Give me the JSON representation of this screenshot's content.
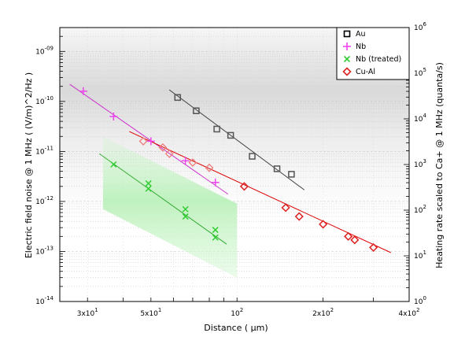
{
  "chart_data": {
    "type": "scatter",
    "xlabel": "Distance (  μm)",
    "ylabel_left": "Electric field noise @ 1 MHz ( (V/m)^2/Hz )",
    "ylabel_right": "Heating rate scaled to Ca+ @ 1 MHz (quanta/s)",
    "xscale": "log",
    "yscale": "log",
    "xlim": [
      24,
      400
    ],
    "ylim_left": [
      1e-14,
      3e-09
    ],
    "ylim_right": [
      1,
      1000000
    ],
    "x_ticks": [
      {
        "value": 30,
        "label": "3x10",
        "exp": "1"
      },
      {
        "value": 50,
        "label": "5x10",
        "exp": "1"
      },
      {
        "value": 100,
        "label": "10",
        "exp": "2"
      },
      {
        "value": 200,
        "label": "2x10",
        "exp": "2"
      },
      {
        "value": 400,
        "label": "4x10",
        "exp": "2"
      }
    ],
    "y_ticks_left": [
      {
        "value": 1e-14,
        "label": "10",
        "exp": "-14"
      },
      {
        "value": 1e-13,
        "label": "10",
        "exp": "-13"
      },
      {
        "value": 1e-12,
        "label": "10",
        "exp": "-12"
      },
      {
        "value": 1e-11,
        "label": "10",
        "exp": "-11"
      },
      {
        "value": 1e-10,
        "label": "10",
        "exp": "-10"
      },
      {
        "value": 1e-09,
        "label": "10",
        "exp": "-09"
      }
    ],
    "y_ticks_right": [
      {
        "value": 1,
        "label": "10",
        "exp": "0"
      },
      {
        "value": 10,
        "label": "10",
        "exp": "1"
      },
      {
        "value": 100,
        "label": "10",
        "exp": "2"
      },
      {
        "value": 1000,
        "label": "10",
        "exp": "3"
      },
      {
        "value": 10000,
        "label": "10",
        "exp": "4"
      },
      {
        "value": 100000,
        "label": "10",
        "exp": "5"
      },
      {
        "value": 1000000,
        "label": "10",
        "exp": "6"
      }
    ],
    "grid": true,
    "legend_position": "top-right",
    "series": [
      {
        "name": "Au",
        "marker": "square",
        "color": "#555555",
        "fit_color": "#444444",
        "points": [
          [
            62,
            1.2e-10
          ],
          [
            72,
            6.5e-11
          ],
          [
            85,
            2.8e-11
          ],
          [
            95,
            2.1e-11
          ],
          [
            113,
            8e-12
          ],
          [
            138,
            4.5e-12
          ],
          [
            155,
            3.5e-12
          ]
        ],
        "fit": [
          [
            58,
            1.7e-10
          ],
          [
            172,
            1.7e-12
          ]
        ]
      },
      {
        "name": "Nb",
        "marker": "plus",
        "color": "#ee44ee",
        "fit_color": "#cc33cc",
        "points": [
          [
            29,
            1.6e-10
          ],
          [
            37,
            5e-11
          ],
          [
            50,
            1.6e-11
          ],
          [
            66,
            6.5e-12
          ],
          [
            84,
            2.4e-12
          ]
        ],
        "fit": [
          [
            26,
            2.2e-10
          ],
          [
            93,
            1.4e-12
          ]
        ]
      },
      {
        "name": "Nb (treated)",
        "marker": "x",
        "color": "#33cc33",
        "fit_color": "#33aa33",
        "points": [
          [
            37,
            5.5e-12
          ],
          [
            49,
            2.3e-12
          ],
          [
            49,
            1.8e-12
          ],
          [
            66,
            7e-13
          ],
          [
            66,
            5e-13
          ],
          [
            84,
            2.7e-13
          ],
          [
            84,
            1.9e-13
          ]
        ],
        "fit": [
          [
            33,
            9e-12
          ],
          [
            92,
            1.4e-13
          ]
        ],
        "band": [
          [
            34,
            2e-11
          ],
          [
            100,
            9e-13
          ],
          [
            100,
            3e-14
          ],
          [
            34,
            7e-13
          ]
        ]
      },
      {
        "name": "Cu-Al",
        "marker": "diamond",
        "color": "#dd2222",
        "fit_color": "#dd0000",
        "points_light": [
          [
            47,
            1.6e-11
          ],
          [
            55,
            1.2e-11
          ],
          [
            58,
            9e-12
          ],
          [
            70,
            6e-12
          ],
          [
            80,
            4.7e-12
          ]
        ],
        "points": [
          [
            106,
            2e-12
          ],
          [
            148,
            7.5e-13
          ],
          [
            165,
            5e-13
          ],
          [
            200,
            3.5e-13
          ],
          [
            245,
            2e-13
          ],
          [
            258,
            1.7e-13
          ],
          [
            300,
            1.2e-13
          ]
        ],
        "fit": [
          [
            42,
            2.5e-11
          ],
          [
            345,
            9.5e-14
          ]
        ]
      }
    ]
  }
}
